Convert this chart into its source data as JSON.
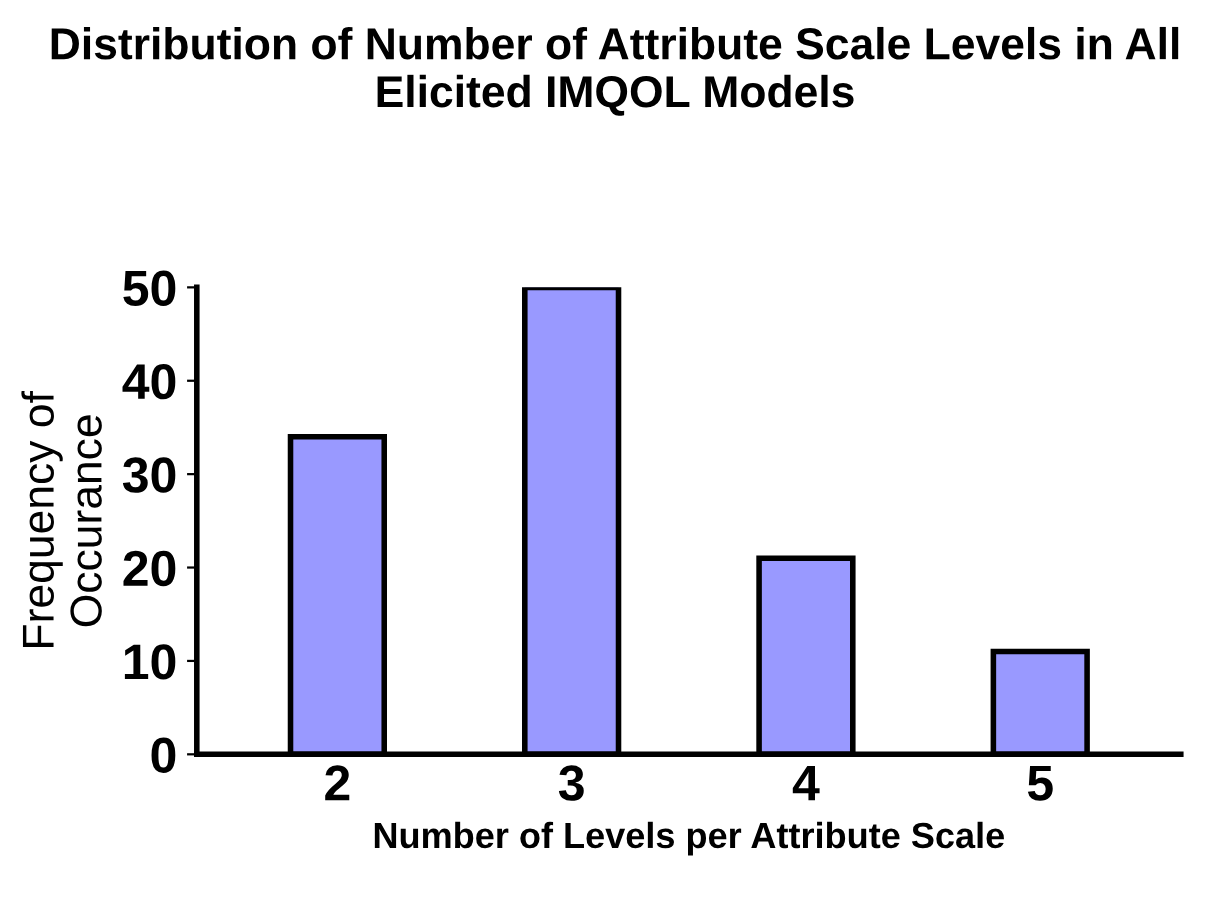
{
  "chart_data": {
    "type": "bar",
    "title": "Distribution of Number of Attribute Scale Levels in All Elicited IMQOL Models",
    "xlabel": "Number of Levels per Attribute Scale",
    "ylabel": "Frequency of\nOccurance",
    "categories": [
      "2",
      "3",
      "4",
      "5"
    ],
    "values": [
      34,
      50,
      21,
      11
    ],
    "color": "#9999ff",
    "ylim": [
      0,
      50
    ],
    "yticks": [
      0,
      10,
      20,
      30,
      40,
      50
    ],
    "grid": false
  }
}
